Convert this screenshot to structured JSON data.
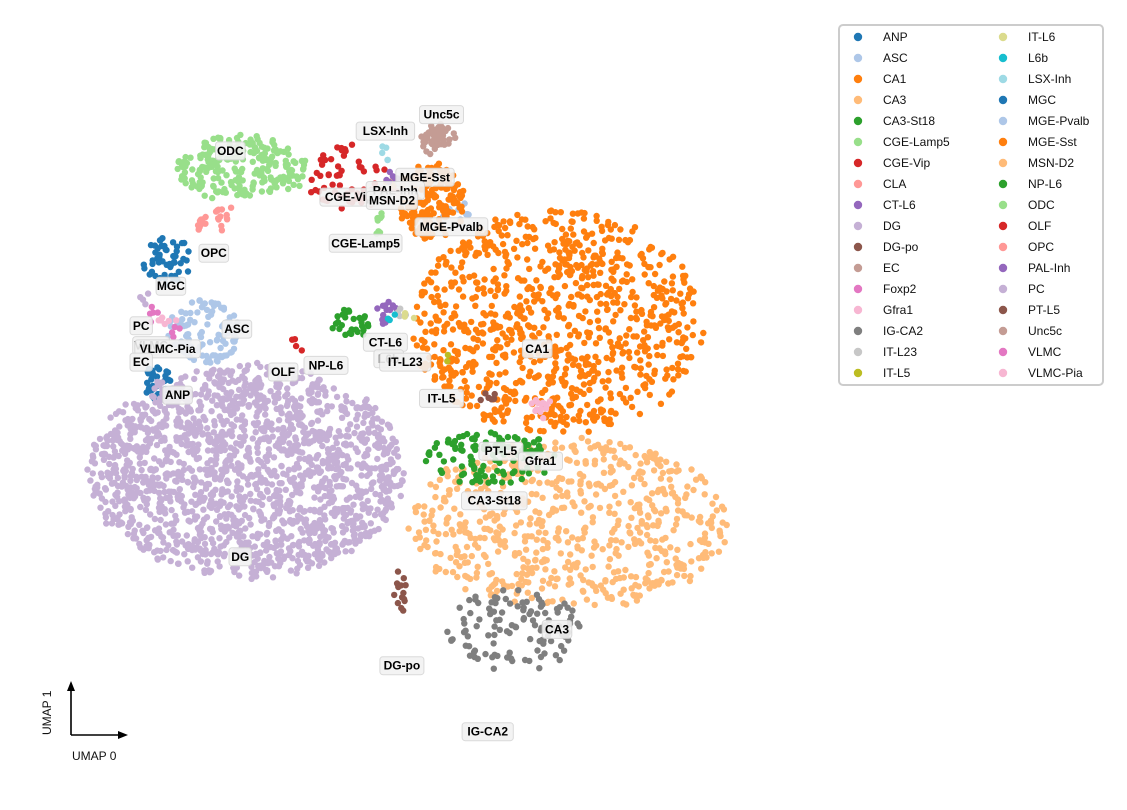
{
  "chart_data": {
    "type": "scatter",
    "title": "",
    "xlabel": "UMAP 0",
    "ylabel": "UMAP 1",
    "xlim": [
      0,
      100
    ],
    "ylim": [
      0,
      100
    ],
    "grid": false,
    "legend_placement": "right, outside plot, two columns",
    "clusters": [
      {
        "name": "ANP",
        "color": "#1f77b4",
        "label": "ANP",
        "center": [
          9.5,
          53.3
        ],
        "spread": [
          2.0,
          3.0
        ],
        "n": 40,
        "shape": "blob"
      },
      {
        "name": "ASC",
        "color": "#aec7e8",
        "label": "ASC",
        "center": [
          16.5,
          61.0
        ],
        "spread": [
          5.5,
          5.0
        ],
        "n": 110,
        "shape": "blob"
      },
      {
        "name": "CA1",
        "color": "#ff7f0e",
        "label": "CA1",
        "center": [
          70.0,
          62.5
        ],
        "spread": [
          22.0,
          17.0
        ],
        "n": 900,
        "shape": "blob"
      },
      {
        "name": "CA3",
        "color": "#ffbb78",
        "label": "CA3",
        "center": [
          72.0,
          32.0
        ],
        "spread": [
          24.0,
          13.0
        ],
        "n": 650,
        "shape": "blob"
      },
      {
        "name": "CA3-St18",
        "color": "#2ca02c",
        "label": "CA3-St18",
        "center": [
          60.0,
          42.0
        ],
        "spread": [
          10.0,
          4.0
        ],
        "n": 110,
        "shape": "blob"
      },
      {
        "name": "CGE-Lamp5",
        "color": "#98df8a",
        "label": "CGE-Lamp5",
        "center": [
          43.5,
          77.3
        ],
        "spread": [
          1.0,
          3.0
        ],
        "n": 8,
        "shape": "blob"
      },
      {
        "name": "CGE-Vip",
        "color": "#d62728",
        "label": "CGE-Vip",
        "center": [
          38.5,
          84.5
        ],
        "spread": [
          6.0,
          5.0
        ],
        "n": 60,
        "shape": "blob"
      },
      {
        "name": "CLA",
        "color": "#ff9896",
        "label": "",
        "center": [
          45.0,
          82.0
        ],
        "spread": [
          1.0,
          1.0
        ],
        "n": 3,
        "shape": "blob"
      },
      {
        "name": "CT-L6",
        "color": "#9467bd",
        "label": "CT-L6",
        "center": [
          44.0,
          64.0
        ],
        "spread": [
          1.5,
          2.0
        ],
        "n": 12,
        "shape": "blob"
      },
      {
        "name": "DG",
        "color": "#c5b0d5",
        "label": "DG",
        "center": [
          23.0,
          40.0
        ],
        "spread": [
          24.0,
          16.0
        ],
        "n": 1700,
        "shape": "blob"
      },
      {
        "name": "DG-po",
        "color": "#8c564b",
        "label": "DG-po",
        "center": [
          46.5,
          22.0
        ],
        "spread": [
          1.2,
          3.5
        ],
        "n": 14,
        "shape": "blob"
      },
      {
        "name": "EC",
        "color": "#c49c94",
        "label": "EC",
        "center": [
          52.0,
          90.0
        ],
        "spread": [
          2.5,
          2.5
        ],
        "n": 28,
        "shape": "blob"
      },
      {
        "name": "Foxp2",
        "color": "#e377c2",
        "label": "",
        "center": [
          12.5,
          61.0
        ],
        "spread": [
          1.0,
          1.0
        ],
        "n": 4,
        "shape": "blob"
      },
      {
        "name": "Gfra1",
        "color": "#f7b6d2",
        "label": "Gfra1",
        "center": [
          67.5,
          49.5
        ],
        "spread": [
          2.0,
          1.5
        ],
        "n": 14,
        "shape": "blob"
      },
      {
        "name": "IG-CA2",
        "color": "#7f7f7f",
        "label": "IG-CA2",
        "center": [
          63.5,
          16.0
        ],
        "spread": [
          10.0,
          6.0
        ],
        "n": 120,
        "shape": "blob"
      },
      {
        "name": "IT-L23",
        "color": "#c7c7c7",
        "label": "IT-L23",
        "center": [
          46.5,
          63.5
        ],
        "spread": [
          1.0,
          1.0
        ],
        "n": 4,
        "shape": "blob"
      },
      {
        "name": "IT-L5",
        "color": "#bcbd22",
        "label": "IT-L5",
        "center": [
          53.5,
          57.5
        ],
        "spread": [
          1.0,
          1.0
        ],
        "n": 2,
        "shape": "blob"
      },
      {
        "name": "IT-L6",
        "color": "#dbdb8d",
        "label": "",
        "center": [
          47.0,
          63.0
        ],
        "spread": [
          1.0,
          1.0
        ],
        "n": 3,
        "shape": "blob"
      },
      {
        "name": "L6b",
        "color": "#17becf",
        "label": "L6b",
        "center": [
          44.5,
          63.3
        ],
        "spread": [
          1.0,
          1.0
        ],
        "n": 3,
        "shape": "blob"
      },
      {
        "name": "LSX-Inh",
        "color": "#9edae5",
        "label": "LSX-Inh",
        "center": [
          44.2,
          88.0
        ],
        "spread": [
          0.5,
          1.5
        ],
        "n": 5,
        "shape": "blob"
      },
      {
        "name": "MGC",
        "color": "#1f77b4",
        "label": "MGC",
        "center": [
          11.0,
          72.0
        ],
        "spread": [
          3.5,
          3.5
        ],
        "n": 50,
        "shape": "blob"
      },
      {
        "name": "MGE-Pvalb",
        "color": "#aec7e8",
        "label": "MGE-Pvalb",
        "center": [
          54.5,
          79.0
        ],
        "spread": [
          2.0,
          2.0
        ],
        "n": 15,
        "shape": "blob"
      },
      {
        "name": "MGE-Sst",
        "color": "#ff7f0e",
        "label": "MGE-Sst",
        "center": [
          51.0,
          81.0
        ],
        "spread": [
          5.0,
          6.0
        ],
        "n": 160,
        "shape": "blob"
      },
      {
        "name": "MSN-D2",
        "color": "#ffbb78",
        "label": "MSN-D2",
        "center": [
          44.5,
          83.5
        ],
        "spread": [
          1.0,
          1.0
        ],
        "n": 3,
        "shape": "blob"
      },
      {
        "name": "NP-L6",
        "color": "#2ca02c",
        "label": "NP-L6",
        "center": [
          39.0,
          62.0
        ],
        "spread": [
          2.5,
          2.5
        ],
        "n": 28,
        "shape": "blob"
      },
      {
        "name": "ODC",
        "color": "#98df8a",
        "label": "ODC",
        "center": [
          22.0,
          86.0
        ],
        "spread": [
          10.0,
          5.0
        ],
        "n": 220,
        "shape": "blob"
      },
      {
        "name": "OLF",
        "color": "#d62728",
        "label": "OLF",
        "center": [
          30.5,
          59.0
        ],
        "spread": [
          0.8,
          1.0
        ],
        "n": 4,
        "shape": "blob"
      },
      {
        "name": "OPC",
        "color": "#ff9896",
        "label": "OPC",
        "center": [
          18.0,
          78.0
        ],
        "spread": [
          3.0,
          2.0
        ],
        "n": 22,
        "shape": "blob"
      },
      {
        "name": "PAL-Inh",
        "color": "#9467bd",
        "label": "PAL-Inh",
        "center": [
          44.5,
          84.5
        ],
        "spread": [
          1.5,
          1.0
        ],
        "n": 6,
        "shape": "blob"
      },
      {
        "name": "PC",
        "color": "#c5b0d5",
        "label": "PC",
        "center": [
          7.5,
          66.0
        ],
        "spread": [
          1.0,
          1.0
        ],
        "n": 4,
        "shape": "blob"
      },
      {
        "name": "PT-L5",
        "color": "#8c564b",
        "label": "PT-L5",
        "center": [
          60.0,
          51.0
        ],
        "spread": [
          1.5,
          1.0
        ],
        "n": 6,
        "shape": "blob"
      },
      {
        "name": "Unc5c",
        "color": "#c49c94",
        "label": "Unc5c",
        "center": [
          52.0,
          90.5
        ],
        "spread": [
          2.0,
          2.0
        ],
        "n": 20,
        "shape": "blob"
      },
      {
        "name": "VLMC",
        "color": "#e377c2",
        "label": "VLMC",
        "center": [
          9.0,
          63.5
        ],
        "spread": [
          1.0,
          1.0
        ],
        "n": 5,
        "shape": "blob"
      },
      {
        "name": "VLMC-Pia",
        "color": "#f7b6d2",
        "label": "VLMC-Pia",
        "center": [
          11.0,
          63.0
        ],
        "spread": [
          1.5,
          1.0
        ],
        "n": 6,
        "shape": "blob"
      }
    ],
    "legend": {
      "columns": [
        [
          "ANP",
          "ASC",
          "CA1",
          "CA3",
          "CA3-St18",
          "CGE-Lamp5",
          "CGE-Vip",
          "CLA",
          "CT-L6",
          "DG",
          "DG-po",
          "EC",
          "Foxp2",
          "Gfra1",
          "IG-CA2",
          "IT-L23",
          "IT-L5"
        ],
        [
          "IT-L6",
          "L6b",
          "LSX-Inh",
          "MGC",
          "MGE-Pvalb",
          "MGE-Sst",
          "MSN-D2",
          "NP-L6",
          "ODC",
          "OLF",
          "OPC",
          "PAL-Inh",
          "PC",
          "PT-L5",
          "Unc5c",
          "VLMC",
          "VLMC-Pia"
        ]
      ]
    },
    "label_layout": [
      {
        "text": "LSX-Inh",
        "pos": [
          44.0,
          91.5
        ]
      },
      {
        "text": "Unc5c",
        "pos": [
          52.5,
          94.0
        ]
      },
      {
        "text": "ODC",
        "pos": [
          20.5,
          88.5
        ]
      },
      {
        "text": "MGE-Sst",
        "pos": [
          50.0,
          84.5
        ]
      },
      {
        "text": "CGE-Vip",
        "pos": [
          38.5,
          81.5
        ]
      },
      {
        "text": "PAL-Inh",
        "pos": [
          45.5,
          82.5
        ]
      },
      {
        "text": "MSN-D2",
        "pos": [
          45.0,
          81.0
        ]
      },
      {
        "text": "MGE-Pvalb",
        "pos": [
          54.0,
          77.0
        ]
      },
      {
        "text": "CGE-Lamp5",
        "pos": [
          41.0,
          74.5
        ]
      },
      {
        "text": "OPC",
        "pos": [
          18.0,
          73.0
        ]
      },
      {
        "text": "MGC",
        "pos": [
          11.5,
          68.0
        ]
      },
      {
        "text": "PC",
        "pos": [
          7.0,
          62.0
        ]
      },
      {
        "text": "VLMC",
        "pos": [
          8.5,
          59.0
        ]
      },
      {
        "text": "VLMC-Pia",
        "pos": [
          11.0,
          58.5
        ]
      },
      {
        "text": "EC",
        "pos": [
          7.0,
          56.5
        ]
      },
      {
        "text": "ASC",
        "pos": [
          21.5,
          61.5
        ]
      },
      {
        "text": "CT-L6",
        "pos": [
          44.0,
          59.5
        ]
      },
      {
        "text": "L6b",
        "pos": [
          44.5,
          57.0
        ]
      },
      {
        "text": "IT-L23",
        "pos": [
          47.0,
          56.5
        ]
      },
      {
        "text": "NP-L6",
        "pos": [
          35.0,
          56.0
        ]
      },
      {
        "text": "OLF",
        "pos": [
          28.5,
          55.0
        ]
      },
      {
        "text": "ANP",
        "pos": [
          12.5,
          51.5
        ]
      },
      {
        "text": "IT-L5",
        "pos": [
          52.5,
          51.0
        ]
      },
      {
        "text": "CA1",
        "pos": [
          67.0,
          58.5
        ]
      },
      {
        "text": "PT-L5",
        "pos": [
          61.5,
          43.0
        ]
      },
      {
        "text": "Gfra1",
        "pos": [
          67.5,
          41.5
        ]
      },
      {
        "text": "CA3-St18",
        "pos": [
          60.5,
          35.5
        ]
      },
      {
        "text": "DG",
        "pos": [
          22.0,
          27.0
        ]
      },
      {
        "text": "CA3",
        "pos": [
          70.0,
          16.0
        ]
      },
      {
        "text": "DG-po",
        "pos": [
          46.5,
          10.5
        ]
      },
      {
        "text": "IG-CA2",
        "pos": [
          59.5,
          0.5
        ]
      }
    ]
  }
}
